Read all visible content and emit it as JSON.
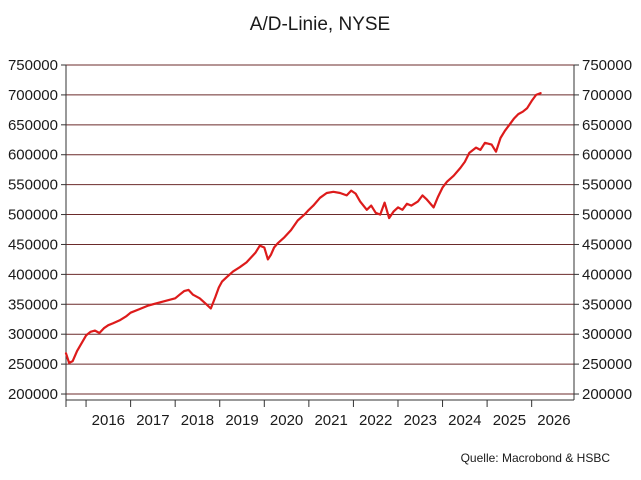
{
  "chart_data": {
    "type": "line",
    "title": "A/D-Linie, NYSE",
    "source": "Quelle: Macrobond & HSBC",
    "xlabel": "",
    "ylabel": "",
    "ylim": [
      190000,
      750000
    ],
    "xlim": [
      2015.55,
      2026.95
    ],
    "y_ticks": [
      200000,
      250000,
      300000,
      350000,
      400000,
      450000,
      500000,
      550000,
      600000,
      650000,
      700000,
      750000
    ],
    "y_tick_labels": [
      "200000",
      "250000",
      "300000",
      "350000",
      "400000",
      "450000",
      "500000",
      "550000",
      "600000",
      "650000",
      "700000",
      "750000"
    ],
    "x_tick_labels": [
      "2016",
      "2017",
      "2018",
      "2019",
      "2020",
      "2021",
      "2022",
      "2023",
      "2024",
      "2025",
      "2026"
    ],
    "grid": true,
    "legend": "none",
    "colors": {
      "line": "#dd1b1b",
      "grid": "#6b2b2b",
      "text": "#1a1a1a"
    },
    "series": [
      {
        "x": [
          2015.55,
          2015.62,
          2015.7,
          2015.8,
          2015.9,
          2016.0,
          2016.1,
          2016.2,
          2016.3,
          2016.4,
          2016.5,
          2016.6,
          2016.75,
          2016.9,
          2017.0,
          2017.2,
          2017.4,
          2017.6,
          2017.8,
          2018.0,
          2018.1,
          2018.2,
          2018.3,
          2018.4,
          2018.55,
          2018.7,
          2018.8,
          2018.9,
          2018.98,
          2019.05,
          2019.15,
          2019.3,
          2019.45,
          2019.6,
          2019.7,
          2019.8,
          2019.9,
          2020.0,
          2020.08,
          2020.15,
          2020.22,
          2020.3,
          2020.45,
          2020.6,
          2020.75,
          2020.9,
          2021.0,
          2021.1,
          2021.25,
          2021.4,
          2021.55,
          2021.7,
          2021.85,
          2021.95,
          2022.05,
          2022.15,
          2022.3,
          2022.4,
          2022.5,
          2022.6,
          2022.7,
          2022.8,
          2022.9,
          2023.0,
          2023.1,
          2023.2,
          2023.3,
          2023.45,
          2023.55,
          2023.65,
          2023.8,
          2023.9,
          2024.0,
          2024.1,
          2024.25,
          2024.4,
          2024.5,
          2024.6,
          2024.75,
          2024.85,
          2024.95,
          2025.1,
          2025.2,
          2025.3,
          2025.4,
          2025.5,
          2025.6,
          2025.7,
          2025.8,
          2025.9,
          2026.0,
          2026.1,
          2026.2
        ],
        "y": [
          268000,
          252000,
          255000,
          272000,
          285000,
          298000,
          304000,
          306000,
          302000,
          310000,
          315000,
          318000,
          323000,
          330000,
          336000,
          342000,
          348000,
          352000,
          356000,
          360000,
          366000,
          372000,
          374000,
          366000,
          360000,
          350000,
          343000,
          362000,
          378000,
          388000,
          395000,
          405000,
          412000,
          420000,
          428000,
          436000,
          448000,
          445000,
          425000,
          433000,
          445000,
          452000,
          462000,
          474000,
          490000,
          500000,
          508000,
          515000,
          528000,
          536000,
          538000,
          536000,
          532000,
          540000,
          535000,
          522000,
          508000,
          515000,
          503000,
          500000,
          520000,
          494000,
          505000,
          512000,
          508000,
          518000,
          515000,
          522000,
          532000,
          525000,
          512000,
          530000,
          545000,
          555000,
          565000,
          578000,
          588000,
          603000,
          612000,
          608000,
          620000,
          617000,
          605000,
          628000,
          640000,
          650000,
          660000,
          668000,
          672000,
          678000,
          690000,
          700000,
          703000
        ]
      }
    ]
  }
}
